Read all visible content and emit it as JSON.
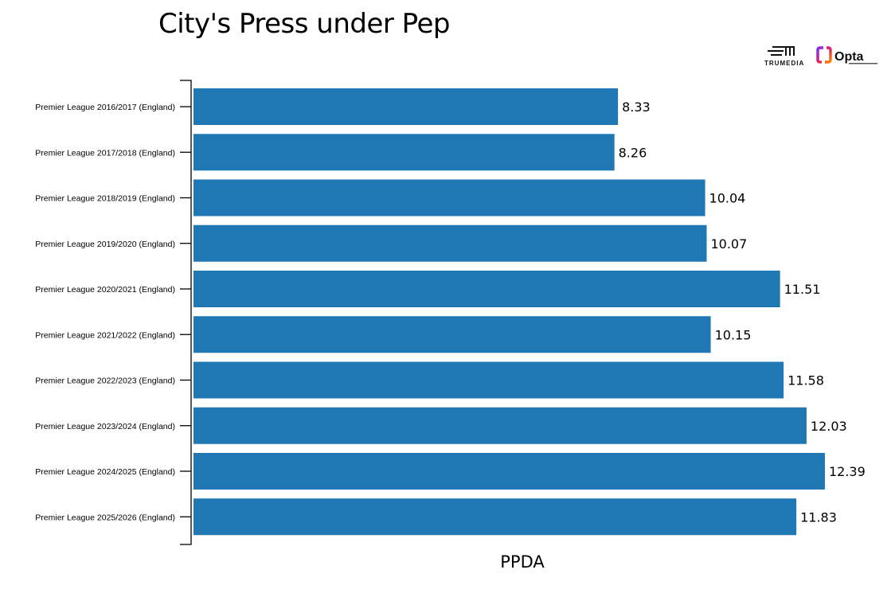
{
  "chart_data": {
    "type": "bar",
    "orientation": "horizontal",
    "title": "City's Press under Pep",
    "xlabel": "PPDA",
    "ylabel": "",
    "categories": [
      "Premier League 2016/2017 (England)",
      "Premier League 2017/2018 (England)",
      "Premier League 2018/2019 (England)",
      "Premier League 2019/2020 (England)",
      "Premier League 2020/2021 (England)",
      "Premier League 2021/2022 (England)",
      "Premier League 2022/2023 (England)",
      "Premier League 2023/2024 (England)",
      "Premier League 2024/2025 (England)",
      "Premier League 2025/2026 (England)"
    ],
    "values": [
      8.33,
      8.26,
      10.04,
      10.07,
      11.51,
      10.15,
      11.58,
      12.03,
      12.39,
      11.83
    ],
    "value_labels": [
      "8.33",
      "8.26",
      "10.04",
      "10.07",
      "11.51",
      "10.15",
      "11.58",
      "12.03",
      "12.39",
      "11.83"
    ],
    "xlim": [
      0,
      13.5
    ],
    "grid": false,
    "bar_color": "#1f77b4"
  },
  "logos": {
    "trumedia": "TRUMEDIA",
    "opta": "Opta"
  }
}
